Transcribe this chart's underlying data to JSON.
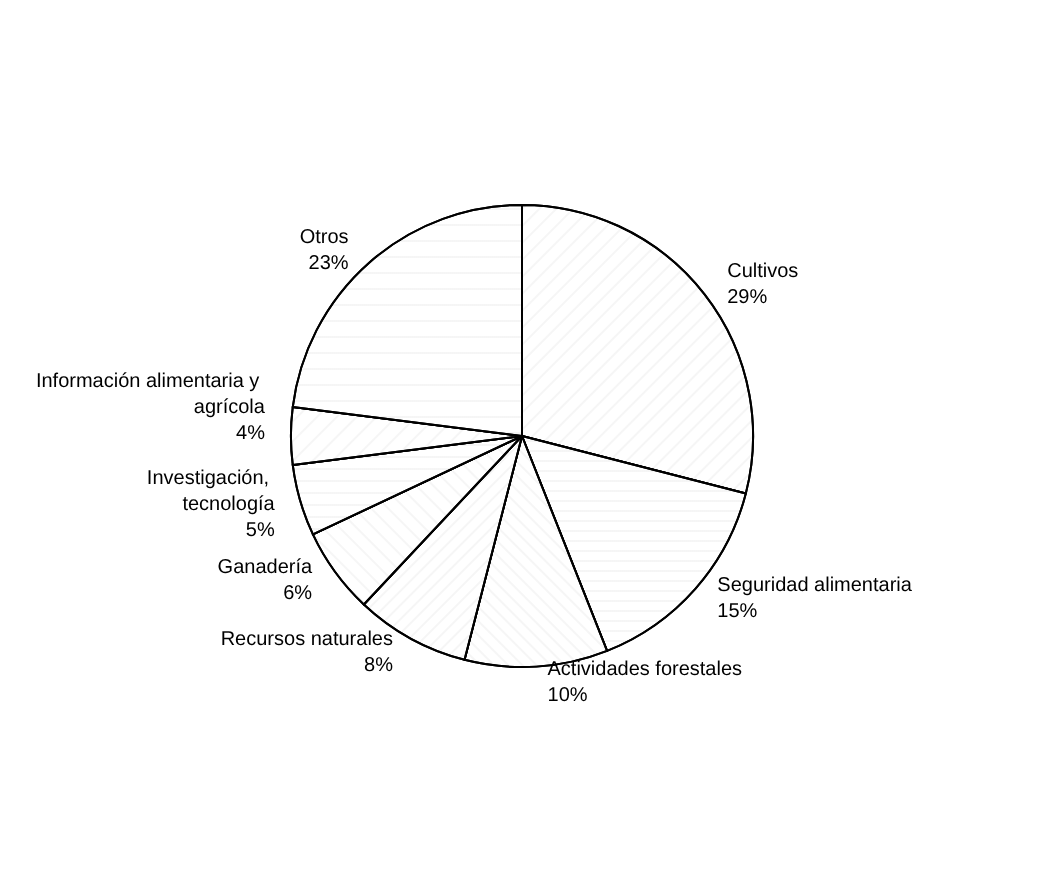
{
  "chart_data": {
    "type": "pie",
    "categories": [
      "Cultivos",
      "Seguridad alimentaria",
      "Actividades forestales",
      "Recursos naturales",
      "Ganadería",
      "Investigación, tecnología",
      "Información alimentaria y agrícola",
      "Otros"
    ],
    "values": [
      29,
      15,
      10,
      8,
      6,
      5,
      4,
      23
    ],
    "value_labels": [
      "29%",
      "15%",
      "10%",
      "8%",
      "6%",
      "5%",
      "4%",
      "23%"
    ],
    "colors": [
      "#ffffff",
      "#ffffff",
      "#ffffff",
      "#ffffff",
      "#ffffff",
      "#ffffff",
      "#ffffff",
      "#ffffff"
    ],
    "legend": false
  }
}
